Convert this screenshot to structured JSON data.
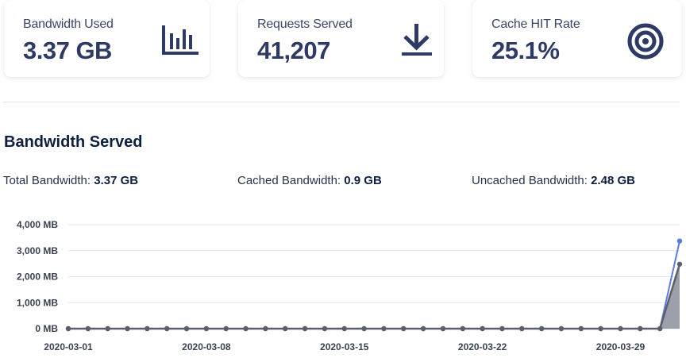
{
  "cards": [
    {
      "label": "Bandwidth Used",
      "value": "3.37 GB",
      "icon": "bar-chart-icon"
    },
    {
      "label": "Requests Served",
      "value": "41,207",
      "icon": "download-icon"
    },
    {
      "label": "Cache HIT Rate",
      "value": "25.1%",
      "icon": "target-icon"
    }
  ],
  "section": {
    "title": "Bandwidth Served",
    "total_label": "Total Bandwidth:",
    "total_value": "3.37 GB",
    "cached_label": "Cached Bandwidth:",
    "cached_value": "0.9 GB",
    "uncached_label": "Uncached Bandwidth:",
    "uncached_value": "2.48 GB"
  },
  "colors": {
    "accent": "#2d3a66",
    "total_line": "#5b7be0",
    "uncached_line": "#5c5f6a",
    "uncached_fill": "#8a8f9c"
  },
  "chart_data": {
    "type": "area",
    "x": [
      "2020-03-01",
      "2020-03-02",
      "2020-03-03",
      "2020-03-04",
      "2020-03-05",
      "2020-03-06",
      "2020-03-07",
      "2020-03-08",
      "2020-03-09",
      "2020-03-10",
      "2020-03-11",
      "2020-03-12",
      "2020-03-13",
      "2020-03-14",
      "2020-03-15",
      "2020-03-16",
      "2020-03-17",
      "2020-03-18",
      "2020-03-19",
      "2020-03-20",
      "2020-03-21",
      "2020-03-22",
      "2020-03-23",
      "2020-03-24",
      "2020-03-25",
      "2020-03-26",
      "2020-03-27",
      "2020-03-28",
      "2020-03-29",
      "2020-03-30",
      "2020-03-31",
      "2020-04-01"
    ],
    "xtick_labels": [
      "2020-03-01",
      "2020-03-08",
      "2020-03-15",
      "2020-03-22",
      "2020-03-29"
    ],
    "ytick_labels": [
      "4,000 MB",
      "3,000 MB",
      "2,000 MB",
      "1,000 MB",
      "0 MB"
    ],
    "ylim": [
      0,
      4000
    ],
    "series": [
      {
        "values": [
          0,
          0,
          0,
          0,
          0,
          0,
          0,
          0,
          0,
          0,
          0,
          0,
          0,
          0,
          0,
          0,
          0,
          0,
          0,
          0,
          0,
          0,
          0,
          0,
          0,
          0,
          0,
          0,
          0,
          0,
          0,
          3370
        ]
      },
      {
        "values": [
          0,
          0,
          0,
          0,
          0,
          0,
          0,
          0,
          0,
          0,
          0,
          0,
          0,
          0,
          0,
          0,
          0,
          0,
          0,
          0,
          0,
          0,
          0,
          0,
          0,
          0,
          0,
          0,
          0,
          0,
          0,
          2480
        ]
      }
    ],
    "title": "",
    "xlabel": "",
    "ylabel": "",
    "grid": true
  }
}
